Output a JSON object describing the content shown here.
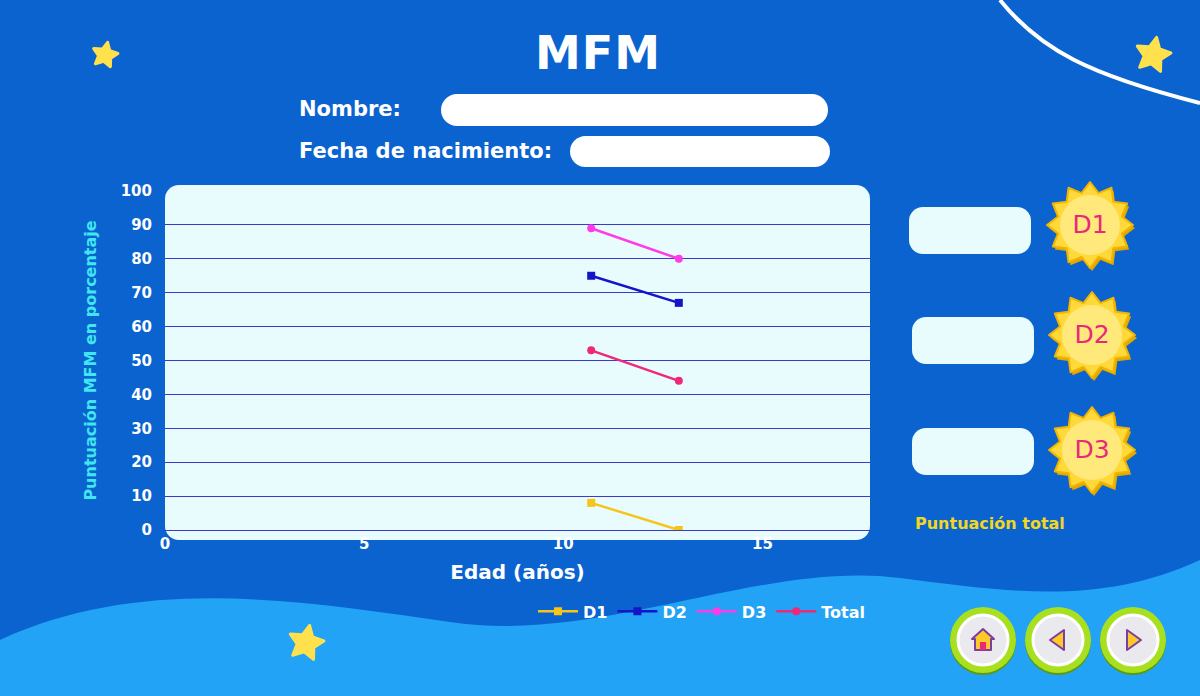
{
  "page": {
    "title": "MFM",
    "fields": [
      "Nombre:",
      "Fecha de nacimiento:"
    ],
    "scores": [
      "D1",
      "D2",
      "D3"
    ],
    "total_label": "Puntuación total"
  },
  "chart_data": {
    "type": "line",
    "x_label": "Edad (años)",
    "y_label": "Puntuación MFM en porcentaje",
    "x": [
      10.7,
      12.9
    ],
    "series": [
      {
        "name": "D1",
        "color": "#f5c518",
        "marker": "square",
        "values": [
          8,
          0
        ]
      },
      {
        "name": "D2",
        "color": "#1414c8",
        "marker": "square",
        "values": [
          75,
          67
        ]
      },
      {
        "name": "D3",
        "color": "#ff3ce6",
        "marker": "circle",
        "values": [
          89,
          80
        ]
      },
      {
        "name": "Total",
        "color": "#f0287a",
        "marker": "circle",
        "values": [
          53,
          44
        ]
      }
    ],
    "xlim": [
      0,
      17.7
    ],
    "xticks": [
      0,
      5,
      10,
      15
    ],
    "ylim": [
      0,
      100
    ],
    "yticks": [
      0,
      10,
      20,
      30,
      40,
      50,
      60,
      70,
      80,
      90,
      100
    ],
    "grid": true,
    "legend": "bottom right"
  }
}
